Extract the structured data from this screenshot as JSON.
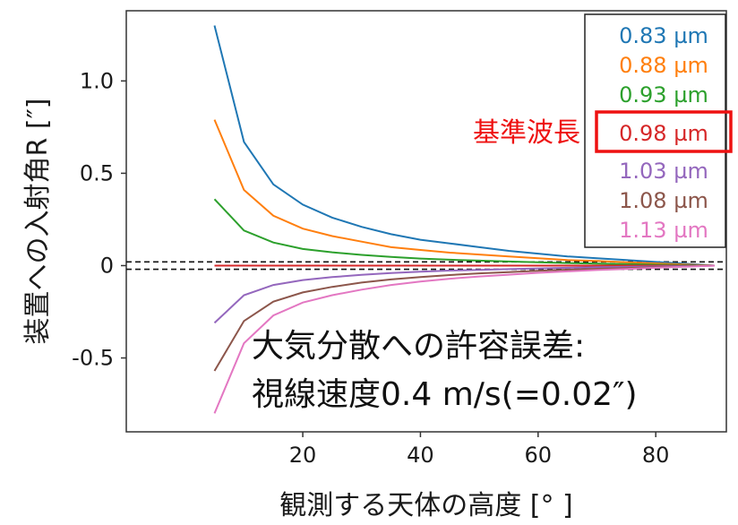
{
  "chart_data": {
    "type": "line",
    "xlabel": "観測する天体の高度 [° ]",
    "ylabel": "装置への入射角R [″]",
    "xlim": [
      -10,
      92
    ],
    "ylim": [
      -0.9,
      1.38
    ],
    "xticks": [
      {
        "value": 20,
        "label": "20"
      },
      {
        "value": 40,
        "label": "40"
      },
      {
        "value": 60,
        "label": "60"
      },
      {
        "value": 80,
        "label": "80"
      }
    ],
    "yticks": [
      {
        "value": 1.0,
        "label": "1.0"
      },
      {
        "value": 0.5,
        "label": "0.5"
      },
      {
        "value": 0,
        "label": "0"
      },
      {
        "value": -0.5,
        "label": "-0.5"
      }
    ],
    "grid": false,
    "legend_position": "top-right",
    "x": [
      5,
      10,
      15,
      20,
      25,
      30,
      35,
      40,
      45,
      50,
      55,
      60,
      65,
      70,
      75,
      80,
      85,
      90
    ],
    "series": [
      {
        "name": "0.83 µm",
        "color": "#1f77b4",
        "values": [
          1.3,
          0.67,
          0.44,
          0.33,
          0.26,
          0.21,
          0.17,
          0.14,
          0.12,
          0.1,
          0.08,
          0.065,
          0.05,
          0.04,
          0.03,
          0.02,
          0.01,
          0.0
        ]
      },
      {
        "name": "0.88 µm",
        "color": "#ff7f0e",
        "values": [
          0.79,
          0.41,
          0.27,
          0.2,
          0.16,
          0.13,
          0.1,
          0.085,
          0.07,
          0.06,
          0.05,
          0.04,
          0.03,
          0.025,
          0.018,
          0.012,
          0.006,
          0.0
        ]
      },
      {
        "name": "0.93 µm",
        "color": "#2ca02c",
        "values": [
          0.36,
          0.19,
          0.125,
          0.09,
          0.072,
          0.058,
          0.047,
          0.038,
          0.032,
          0.027,
          0.022,
          0.018,
          0.014,
          0.011,
          0.008,
          0.005,
          0.003,
          0.0
        ]
      },
      {
        "name": "0.98 µm",
        "color": "#d62728",
        "values": [
          0,
          0,
          0,
          0,
          0,
          0,
          0,
          0,
          0,
          0,
          0,
          0,
          0,
          0,
          0,
          0,
          0,
          0
        ]
      },
      {
        "name": "1.03 µm",
        "color": "#9467bd",
        "values": [
          -0.31,
          -0.16,
          -0.105,
          -0.078,
          -0.062,
          -0.05,
          -0.04,
          -0.033,
          -0.027,
          -0.023,
          -0.019,
          -0.015,
          -0.012,
          -0.009,
          -0.007,
          -0.005,
          -0.002,
          0.0
        ]
      },
      {
        "name": "1.08 µm",
        "color": "#8c564b",
        "values": [
          -0.57,
          -0.3,
          -0.195,
          -0.145,
          -0.115,
          -0.092,
          -0.075,
          -0.062,
          -0.051,
          -0.042,
          -0.035,
          -0.028,
          -0.022,
          -0.017,
          -0.013,
          -0.009,
          -0.004,
          0.0
        ]
      },
      {
        "name": "1.13 µm",
        "color": "#e377c2",
        "values": [
          -0.8,
          -0.42,
          -0.27,
          -0.2,
          -0.16,
          -0.13,
          -0.105,
          -0.086,
          -0.071,
          -0.059,
          -0.049,
          -0.039,
          -0.031,
          -0.024,
          -0.018,
          -0.012,
          -0.006,
          0.0
        ]
      }
    ],
    "tolerance_lines": [
      0.02,
      -0.02
    ],
    "reference_label": "基準波長",
    "reference_series": "0.98 µm",
    "reference_color": "#ee1111",
    "annotation_lines": [
      "大気分散への許容誤差:",
      "視線速度0.4 m/s(=0.02″)"
    ]
  }
}
